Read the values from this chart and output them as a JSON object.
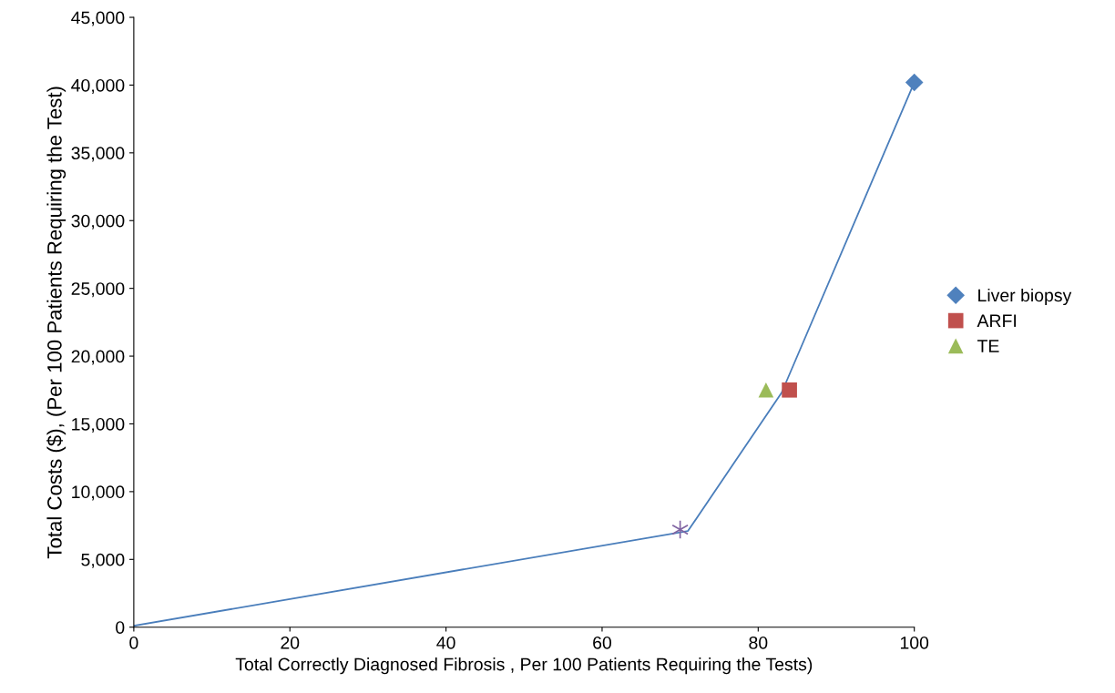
{
  "chart_data": {
    "type": "scatter",
    "xlabel": "Total Correctly Diagnosed Fibrosis , Per 100 Patients Requiring the Tests)",
    "ylabel": "Total Costs ($), (Per 100 Patients Requiring the Test)",
    "xlim": [
      0,
      100
    ],
    "xticks": [
      0,
      20,
      40,
      60,
      80,
      100
    ],
    "ylim": [
      0,
      45000
    ],
    "yticks": [
      {
        "value": 0,
        "label": "0"
      },
      {
        "value": 5000,
        "label": "5,000"
      },
      {
        "value": 10000,
        "label": "10,000"
      },
      {
        "value": 15000,
        "label": "15,000"
      },
      {
        "value": 20000,
        "label": "20,000"
      },
      {
        "value": 25000,
        "label": "25,000"
      },
      {
        "value": 30000,
        "label": "30,000"
      },
      {
        "value": 35000,
        "label": "35,000"
      },
      {
        "value": 40000,
        "label": "40,000"
      },
      {
        "value": 45000,
        "label": "45,000"
      }
    ],
    "grid": false,
    "legend": "right",
    "series": [
      {
        "type": "line",
        "color": "#4a7ebb",
        "marker": "none",
        "line_style": "solid",
        "x": [
          0,
          71,
          83,
          100
        ],
        "values": [
          100,
          7100,
          17300,
          40200
        ]
      },
      {
        "name": "Liver biopsy",
        "color": "#4f81bd",
        "marker": "diamond",
        "x": [
          100
        ],
        "values": [
          40200
        ]
      },
      {
        "name": "ARFI",
        "color": "#c0504d",
        "marker": "square",
        "x": [
          84
        ],
        "values": [
          17500
        ]
      },
      {
        "name": "TE",
        "color": "#9bbb59",
        "marker": "triangle",
        "x": [
          81
        ],
        "values": [
          17500
        ]
      },
      {
        "color": "#8064a2",
        "marker": "cross",
        "x": [
          70
        ],
        "values": [
          7200
        ]
      }
    ]
  }
}
